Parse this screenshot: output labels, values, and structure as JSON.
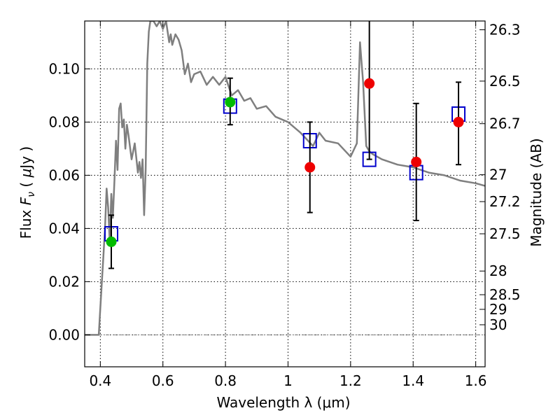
{
  "chart_data": {
    "type": "scatter",
    "xlabel": "Wavelength  λ (μm)",
    "ylabel": "Flux  F_ν ( μJy )",
    "ylabel_right": "Magnitude (AB)",
    "xlim": [
      0.35,
      1.63
    ],
    "ylim": [
      -0.012,
      0.118
    ],
    "grid": true,
    "x_ticks": [
      0.4,
      0.6,
      0.8,
      1.0,
      1.2,
      1.4,
      1.6
    ],
    "x_tick_labels": [
      "0.4",
      "0.6",
      "0.8",
      "1",
      "1.2",
      "1.4",
      "1.6"
    ],
    "y_ticks": [
      0.0,
      0.02,
      0.04,
      0.06,
      0.08,
      0.1
    ],
    "y_tick_labels": [
      "0.00",
      "0.02",
      "0.04",
      "0.06",
      "0.08",
      "0.10"
    ],
    "right_axis_ticks": [
      {
        "label": "26.3",
        "flux": 0.1147
      },
      {
        "label": "26.5",
        "flux": 0.0954
      },
      {
        "label": "26.7",
        "flux": 0.0794
      },
      {
        "label": "27",
        "flux": 0.0602
      },
      {
        "label": "27.2",
        "flux": 0.0501
      },
      {
        "label": "27.5",
        "flux": 0.038
      },
      {
        "label": "28",
        "flux": 0.024
      },
      {
        "label": "28.5",
        "flux": 0.0151
      },
      {
        "label": "29",
        "flux": 0.0096
      },
      {
        "label": "30",
        "flux": 0.0038
      }
    ],
    "model_spectrum": {
      "color": "#7f7f7f",
      "x": [
        0.35,
        0.39,
        0.395,
        0.4,
        0.41,
        0.415,
        0.42,
        0.425,
        0.43,
        0.435,
        0.44,
        0.445,
        0.45,
        0.455,
        0.46,
        0.465,
        0.47,
        0.475,
        0.48,
        0.485,
        0.49,
        0.5,
        0.51,
        0.52,
        0.525,
        0.53,
        0.535,
        0.54,
        0.545,
        0.55,
        0.555,
        0.56,
        0.57,
        0.58,
        0.59,
        0.6,
        0.61,
        0.62,
        0.625,
        0.63,
        0.64,
        0.65,
        0.66,
        0.67,
        0.68,
        0.69,
        0.7,
        0.72,
        0.74,
        0.76,
        0.78,
        0.8,
        0.82,
        0.84,
        0.86,
        0.88,
        0.9,
        0.93,
        0.96,
        1.0,
        1.04,
        1.08,
        1.1,
        1.12,
        1.16,
        1.2,
        1.22,
        1.23,
        1.24,
        1.25,
        1.26,
        1.27,
        1.3,
        1.35,
        1.4,
        1.45,
        1.5,
        1.55,
        1.6,
        1.63
      ],
      "y": [
        0.0,
        0.0,
        0.0,
        0.01,
        0.03,
        0.04,
        0.055,
        0.048,
        0.035,
        0.053,
        0.044,
        0.058,
        0.073,
        0.062,
        0.085,
        0.087,
        0.078,
        0.081,
        0.07,
        0.079,
        0.075,
        0.066,
        0.072,
        0.061,
        0.065,
        0.059,
        0.066,
        0.045,
        0.062,
        0.102,
        0.114,
        0.118,
        0.118,
        0.116,
        0.118,
        0.115,
        0.118,
        0.11,
        0.113,
        0.109,
        0.113,
        0.111,
        0.107,
        0.098,
        0.102,
        0.095,
        0.098,
        0.099,
        0.094,
        0.097,
        0.094,
        0.097,
        0.09,
        0.092,
        0.088,
        0.089,
        0.085,
        0.086,
        0.082,
        0.08,
        0.076,
        0.071,
        0.076,
        0.073,
        0.072,
        0.067,
        0.072,
        0.11,
        0.095,
        0.071,
        0.069,
        0.068,
        0.066,
        0.064,
        0.063,
        0.061,
        0.06,
        0.058,
        0.057,
        0.056
      ]
    },
    "model_photometry": {
      "color": "#0000cc",
      "marker": "open-square",
      "x": [
        0.435,
        0.815,
        1.07,
        1.26,
        1.41,
        1.545
      ],
      "y": [
        0.038,
        0.086,
        0.073,
        0.066,
        0.061,
        0.083
      ]
    },
    "detections": {
      "color": "#00bb00",
      "x": [
        0.435,
        0.815
      ],
      "y": [
        0.035,
        0.0875
      ],
      "yerr_low": [
        0.025,
        0.079
      ],
      "yerr_high": [
        0.045,
        0.0965
      ]
    },
    "other_points": {
      "color": "#ee0000",
      "x": [
        1.07,
        1.26,
        1.41,
        1.545
      ],
      "y": [
        0.063,
        0.0945,
        0.065,
        0.08
      ],
      "yerr_low": [
        0.046,
        0.066,
        0.043,
        0.064
      ],
      "yerr_high": [
        0.08,
        0.118,
        0.087,
        0.095
      ]
    }
  }
}
